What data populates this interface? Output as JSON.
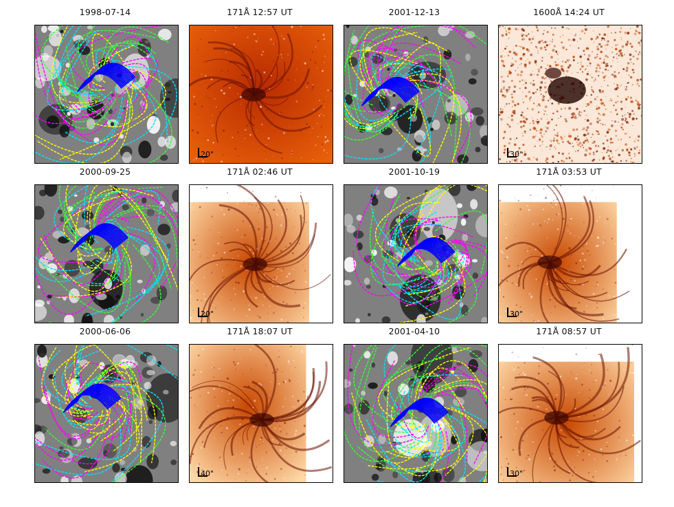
{
  "panels": [
    {
      "title": "1998-07-14",
      "kind": "mag"
    },
    {
      "title": "171Å 12:57 UT",
      "kind": "euv-dark",
      "scale": "20\""
    },
    {
      "title": "2001-12-13",
      "kind": "mag"
    },
    {
      "title": "1600Å 14:24 UT",
      "kind": "uv-speckle",
      "scale": "30\""
    },
    {
      "title": "2000-09-25",
      "kind": "mag"
    },
    {
      "title": "171Å 02:46 UT",
      "kind": "euv",
      "scale": "20\""
    },
    {
      "title": "2001-10-19",
      "kind": "mag"
    },
    {
      "title": "171Å 03:53 UT",
      "kind": "euv",
      "scale": "30\""
    },
    {
      "title": "2000-06-06",
      "kind": "mag"
    },
    {
      "title": "171Å 18:07 UT",
      "kind": "euv",
      "scale": "40\""
    },
    {
      "title": "2001-04-10",
      "kind": "mag"
    },
    {
      "title": "171Å 08:57 UT",
      "kind": "euv",
      "scale": "30\""
    }
  ],
  "line_colors": [
    "#ff00ff",
    "#00e5ff",
    "#ffff00",
    "#33ff33",
    "#0000ff"
  ]
}
